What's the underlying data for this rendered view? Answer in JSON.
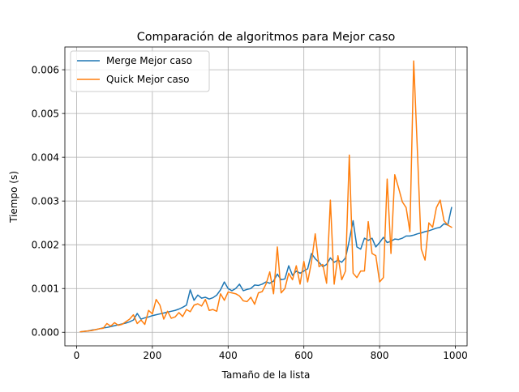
{
  "chart_data": {
    "type": "line",
    "title": "Comparación de algoritmos para Mejor caso",
    "xlabel": "Tamaño de la lista",
    "ylabel": "Tiempo (s)",
    "xlim": [
      -31,
      1031
    ],
    "ylim": [
      -0.00031,
      0.00652
    ],
    "xticks": [
      0,
      200,
      400,
      600,
      800,
      1000
    ],
    "xtick_labels": [
      "0",
      "200",
      "400",
      "600",
      "800",
      "1000"
    ],
    "yticks": [
      0,
      0.001,
      0.002,
      0.003,
      0.004,
      0.005,
      0.006
    ],
    "ytick_labels": [
      "0.000",
      "0.001",
      "0.002",
      "0.003",
      "0.004",
      "0.005",
      "0.006"
    ],
    "grid": true,
    "legend_position": "upper left",
    "x": [
      10,
      20,
      30,
      40,
      50,
      60,
      70,
      80,
      90,
      100,
      110,
      120,
      130,
      140,
      150,
      160,
      170,
      180,
      190,
      200,
      210,
      220,
      230,
      240,
      250,
      260,
      270,
      280,
      290,
      300,
      310,
      320,
      330,
      340,
      350,
      360,
      370,
      380,
      390,
      400,
      410,
      420,
      430,
      440,
      450,
      460,
      470,
      480,
      490,
      500,
      510,
      520,
      530,
      540,
      550,
      560,
      570,
      580,
      590,
      600,
      610,
      620,
      630,
      640,
      650,
      660,
      670,
      680,
      690,
      700,
      710,
      720,
      730,
      740,
      750,
      760,
      770,
      780,
      790,
      800,
      810,
      820,
      830,
      840,
      850,
      860,
      870,
      880,
      890,
      900,
      910,
      920,
      930,
      940,
      950,
      960,
      970,
      980,
      990
    ],
    "series": [
      {
        "name": "Merge Mejor caso",
        "color": "#1f77b4",
        "values": [
          1e-05,
          2e-05,
          3e-05,
          5e-05,
          6e-05,
          8e-05,
          0.0001,
          0.00011,
          0.00013,
          0.00015,
          0.00017,
          0.00019,
          0.00021,
          0.00024,
          0.00028,
          0.00043,
          0.0003,
          0.00033,
          0.00035,
          0.00038,
          0.0004,
          0.00042,
          0.00044,
          0.00046,
          0.00048,
          0.0005,
          0.00053,
          0.00057,
          0.00062,
          0.00097,
          0.00073,
          0.00085,
          0.00078,
          0.0008,
          0.00076,
          0.00079,
          0.00085,
          0.00097,
          0.00115,
          0.001,
          0.00095,
          0.001,
          0.0011,
          0.00095,
          0.00098,
          0.001,
          0.00108,
          0.00107,
          0.0011,
          0.00115,
          0.00112,
          0.00117,
          0.00133,
          0.0012,
          0.00122,
          0.00152,
          0.0013,
          0.0014,
          0.00135,
          0.0014,
          0.00145,
          0.0018,
          0.00168,
          0.0016,
          0.0015,
          0.00155,
          0.0017,
          0.0016,
          0.00165,
          0.0016,
          0.0017,
          0.0021,
          0.00255,
          0.00195,
          0.0019,
          0.00215,
          0.0021,
          0.00215,
          0.00195,
          0.00205,
          0.00217,
          0.00205,
          0.00208,
          0.00213,
          0.00212,
          0.00215,
          0.0022,
          0.0022,
          0.00222,
          0.00225,
          0.00227,
          0.0023,
          0.00232,
          0.00235,
          0.00238,
          0.0024,
          0.00248,
          0.00245,
          0.00285
        ]
      },
      {
        "name": "Quick Mejor caso",
        "color": "#ff7f0e",
        "values": [
          1e-05,
          2e-05,
          3e-05,
          4e-05,
          6e-05,
          8e-05,
          9e-05,
          0.0002,
          0.00014,
          0.00022,
          0.00016,
          0.00018,
          0.00024,
          0.0003,
          0.0004,
          0.0002,
          0.00028,
          0.00018,
          0.0005,
          0.00042,
          0.00075,
          0.00062,
          0.0003,
          0.00048,
          0.00032,
          0.00035,
          0.00045,
          0.00036,
          0.00052,
          0.00047,
          0.00062,
          0.00065,
          0.0006,
          0.00075,
          0.0005,
          0.00052,
          0.00048,
          0.00088,
          0.00073,
          0.00092,
          0.0009,
          0.00088,
          0.00083,
          0.00072,
          0.0007,
          0.0008,
          0.00064,
          0.0009,
          0.00093,
          0.0011,
          0.00138,
          0.00088,
          0.00195,
          0.0009,
          0.001,
          0.00135,
          0.0012,
          0.00152,
          0.0011,
          0.00162,
          0.00115,
          0.0016,
          0.00225,
          0.0015,
          0.00155,
          0.00112,
          0.00302,
          0.0011,
          0.00175,
          0.0012,
          0.0014,
          0.00405,
          0.00135,
          0.00125,
          0.0014,
          0.0014,
          0.00253,
          0.0018,
          0.00175,
          0.00115,
          0.00125,
          0.0035,
          0.0018,
          0.0036,
          0.0033,
          0.00298,
          0.00285,
          0.0023,
          0.0062,
          0.0041,
          0.0019,
          0.00165,
          0.0025,
          0.0024,
          0.00285,
          0.00302,
          0.00255,
          0.00245,
          0.0024
        ]
      }
    ]
  }
}
